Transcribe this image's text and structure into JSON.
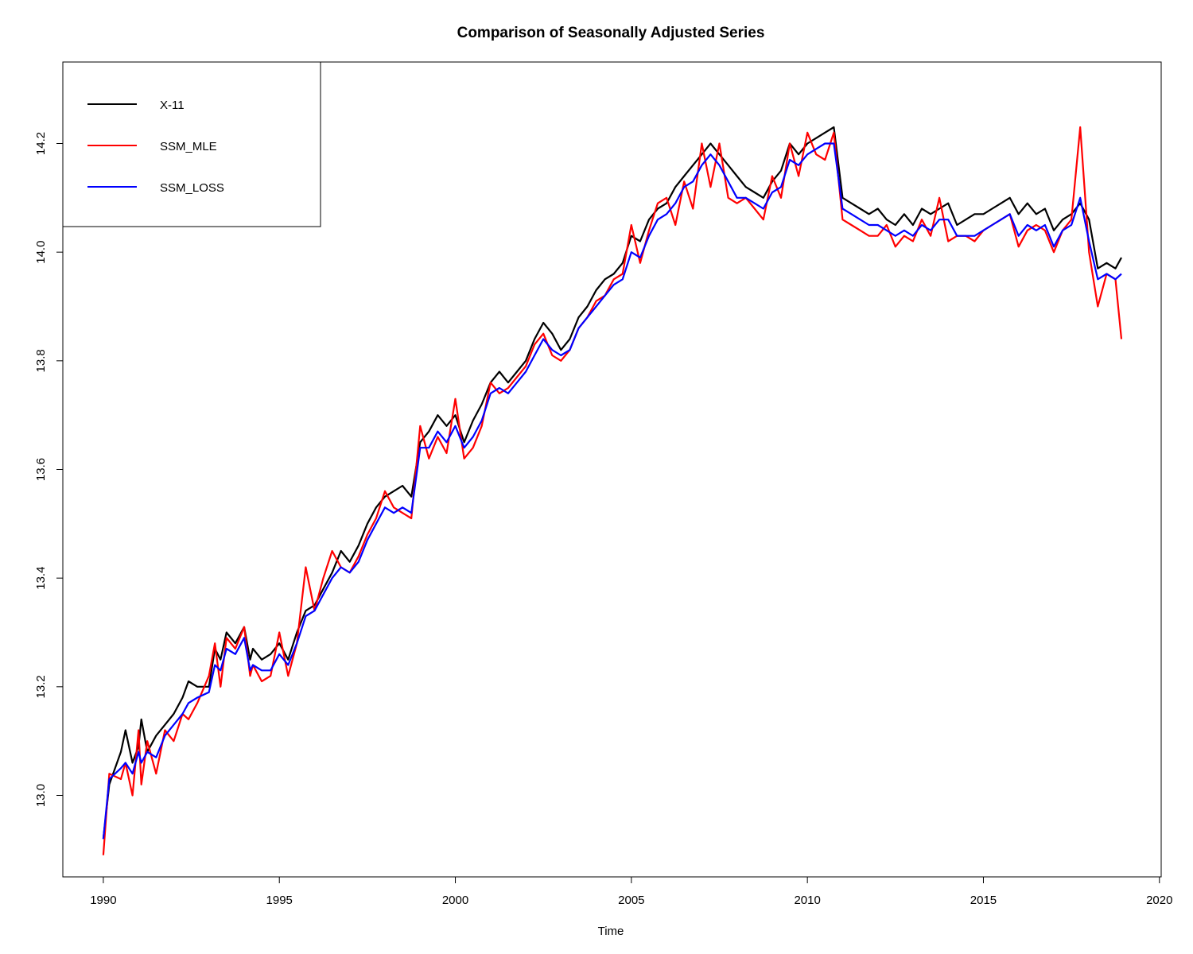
{
  "chart_data": {
    "type": "line",
    "title": "Comparison of Seasonally Adjusted Series",
    "xlabel": "Time",
    "ylabel": "",
    "xlim": [
      1988.85,
      2020.05
    ],
    "ylim": [
      12.85,
      14.35
    ],
    "x_ticks": [
      1990,
      1995,
      2000,
      2005,
      2010,
      2015,
      2020
    ],
    "x_tick_labels": [
      "1990",
      "1995",
      "2000",
      "2005",
      "2010",
      "2015",
      "2020"
    ],
    "y_ticks": [
      13.0,
      13.2,
      13.4,
      13.6,
      13.8,
      14.0,
      14.2
    ],
    "y_tick_labels": [
      "13.0",
      "13.2",
      "13.4",
      "13.6",
      "13.8",
      "14.0",
      "14.2"
    ],
    "grid": false,
    "legend_position": "top-left",
    "frequency": "monthly",
    "series": [
      {
        "name": "X-11",
        "color": "#000000",
        "x": [
          1990.0,
          1990.17,
          1990.5,
          1990.63,
          1990.83,
          1991.0,
          1991.08,
          1991.25,
          1991.5,
          1991.75,
          1992.0,
          1992.25,
          1992.42,
          1992.67,
          1993.0,
          1993.17,
          1993.33,
          1993.5,
          1993.75,
          1994.0,
          1994.17,
          1994.25,
          1994.5,
          1994.75,
          1995.0,
          1995.25,
          1995.5,
          1995.75,
          1996.0,
          1996.25,
          1996.5,
          1996.75,
          1997.0,
          1997.25,
          1997.5,
          1997.75,
          1998.0,
          1998.25,
          1998.5,
          1998.75,
          1999.0,
          1999.25,
          1999.5,
          1999.75,
          2000.0,
          2000.25,
          2000.5,
          2000.75,
          2001.0,
          2001.25,
          2001.5,
          2001.75,
          2002.0,
          2002.25,
          2002.5,
          2002.75,
          2003.0,
          2003.25,
          2003.5,
          2003.75,
          2004.0,
          2004.25,
          2004.5,
          2004.75,
          2005.0,
          2005.25,
          2005.5,
          2005.75,
          2006.0,
          2006.25,
          2006.5,
          2006.75,
          2007.0,
          2007.25,
          2007.5,
          2007.75,
          2008.0,
          2008.25,
          2008.5,
          2008.75,
          2009.0,
          2009.25,
          2009.5,
          2009.75,
          2010.0,
          2010.25,
          2010.5,
          2010.75,
          2011.0,
          2011.25,
          2011.5,
          2011.75,
          2012.0,
          2012.25,
          2012.5,
          2012.75,
          2013.0,
          2013.25,
          2013.5,
          2013.75,
          2014.0,
          2014.25,
          2014.5,
          2014.75,
          2015.0,
          2015.25,
          2015.5,
          2015.75,
          2016.0,
          2016.25,
          2016.5,
          2016.75,
          2017.0,
          2017.25,
          2017.5,
          2017.75,
          2018.0,
          2018.25,
          2018.5,
          2018.75,
          2018.92
        ],
        "y": [
          12.92,
          13.02,
          13.08,
          13.12,
          13.06,
          13.09,
          13.14,
          13.08,
          13.11,
          13.13,
          13.15,
          13.18,
          13.21,
          13.2,
          13.2,
          13.27,
          13.25,
          13.3,
          13.28,
          13.31,
          13.25,
          13.27,
          13.25,
          13.26,
          13.28,
          13.25,
          13.3,
          13.34,
          13.35,
          13.38,
          13.41,
          13.45,
          13.43,
          13.46,
          13.5,
          13.53,
          13.55,
          13.56,
          13.57,
          13.55,
          13.65,
          13.67,
          13.7,
          13.68,
          13.7,
          13.65,
          13.69,
          13.72,
          13.76,
          13.78,
          13.76,
          13.78,
          13.8,
          13.84,
          13.87,
          13.85,
          13.82,
          13.84,
          13.88,
          13.9,
          13.93,
          13.95,
          13.96,
          13.98,
          14.03,
          14.02,
          14.06,
          14.08,
          14.09,
          14.12,
          14.14,
          14.16,
          14.18,
          14.2,
          14.18,
          14.16,
          14.14,
          14.12,
          14.11,
          14.1,
          14.13,
          14.15,
          14.2,
          14.18,
          14.2,
          14.21,
          14.22,
          14.23,
          14.1,
          14.09,
          14.08,
          14.07,
          14.08,
          14.06,
          14.05,
          14.07,
          14.05,
          14.08,
          14.07,
          14.08,
          14.09,
          14.05,
          14.06,
          14.07,
          14.07,
          14.08,
          14.09,
          14.1,
          14.07,
          14.09,
          14.07,
          14.08,
          14.04,
          14.06,
          14.07,
          14.09,
          14.06,
          13.97,
          13.98,
          13.97,
          13.99
        ]
      },
      {
        "name": "SSM_MLE",
        "color": "#ff0000",
        "x": [
          1990.0,
          1990.17,
          1990.5,
          1990.63,
          1990.83,
          1991.0,
          1991.08,
          1991.25,
          1991.5,
          1991.75,
          1992.0,
          1992.25,
          1992.42,
          1992.67,
          1993.0,
          1993.17,
          1993.33,
          1993.5,
          1993.75,
          1994.0,
          1994.17,
          1994.25,
          1994.5,
          1994.75,
          1995.0,
          1995.25,
          1995.5,
          1995.75,
          1996.0,
          1996.25,
          1996.5,
          1996.75,
          1997.0,
          1997.25,
          1997.5,
          1997.75,
          1998.0,
          1998.25,
          1998.5,
          1998.75,
          1999.0,
          1999.25,
          1999.5,
          1999.75,
          2000.0,
          2000.25,
          2000.5,
          2000.75,
          2001.0,
          2001.25,
          2001.5,
          2001.75,
          2002.0,
          2002.25,
          2002.5,
          2002.75,
          2003.0,
          2003.25,
          2003.5,
          2003.75,
          2004.0,
          2004.25,
          2004.5,
          2004.75,
          2005.0,
          2005.25,
          2005.5,
          2005.75,
          2006.0,
          2006.25,
          2006.5,
          2006.75,
          2007.0,
          2007.25,
          2007.5,
          2007.75,
          2008.0,
          2008.25,
          2008.5,
          2008.75,
          2009.0,
          2009.25,
          2009.5,
          2009.75,
          2010.0,
          2010.25,
          2010.5,
          2010.75,
          2011.0,
          2011.25,
          2011.5,
          2011.75,
          2012.0,
          2012.25,
          2012.5,
          2012.75,
          2013.0,
          2013.25,
          2013.5,
          2013.75,
          2014.0,
          2014.25,
          2014.5,
          2014.75,
          2015.0,
          2015.25,
          2015.5,
          2015.75,
          2016.0,
          2016.25,
          2016.5,
          2016.75,
          2017.0,
          2017.25,
          2017.5,
          2017.75,
          2018.0,
          2018.25,
          2018.5,
          2018.75,
          2018.92
        ],
        "y": [
          12.89,
          13.04,
          13.03,
          13.06,
          13.0,
          13.12,
          13.02,
          13.1,
          13.04,
          13.12,
          13.1,
          13.15,
          13.14,
          13.17,
          13.22,
          13.28,
          13.2,
          13.29,
          13.27,
          13.31,
          13.22,
          13.24,
          13.21,
          13.22,
          13.3,
          13.22,
          13.28,
          13.42,
          13.34,
          13.4,
          13.45,
          13.42,
          13.41,
          13.44,
          13.48,
          13.51,
          13.56,
          13.53,
          13.52,
          13.51,
          13.68,
          13.62,
          13.66,
          13.63,
          13.73,
          13.62,
          13.64,
          13.68,
          13.76,
          13.74,
          13.75,
          13.77,
          13.79,
          13.83,
          13.85,
          13.81,
          13.8,
          13.82,
          13.86,
          13.88,
          13.91,
          13.92,
          13.95,
          13.96,
          14.05,
          13.98,
          14.04,
          14.09,
          14.1,
          14.05,
          14.13,
          14.08,
          14.2,
          14.12,
          14.2,
          14.1,
          14.09,
          14.1,
          14.08,
          14.06,
          14.14,
          14.1,
          14.2,
          14.14,
          14.22,
          14.18,
          14.17,
          14.22,
          14.06,
          14.05,
          14.04,
          14.03,
          14.03,
          14.05,
          14.01,
          14.03,
          14.02,
          14.06,
          14.03,
          14.1,
          14.02,
          14.03,
          14.03,
          14.02,
          14.04,
          14.05,
          14.06,
          14.07,
          14.01,
          14.04,
          14.05,
          14.04,
          14.0,
          14.04,
          14.06,
          14.23,
          14.0,
          13.9,
          13.96,
          13.95,
          13.84
        ]
      },
      {
        "name": "SSM_LOSS",
        "color": "#0000ff",
        "x": [
          1990.0,
          1990.17,
          1990.5,
          1990.63,
          1990.83,
          1991.0,
          1991.08,
          1991.25,
          1991.5,
          1991.75,
          1992.0,
          1992.25,
          1992.42,
          1992.67,
          1993.0,
          1993.17,
          1993.33,
          1993.5,
          1993.75,
          1994.0,
          1994.17,
          1994.25,
          1994.5,
          1994.75,
          1995.0,
          1995.25,
          1995.5,
          1995.75,
          1996.0,
          1996.25,
          1996.5,
          1996.75,
          1997.0,
          1997.25,
          1997.5,
          1997.75,
          1998.0,
          1998.25,
          1998.5,
          1998.75,
          1999.0,
          1999.25,
          1999.5,
          1999.75,
          2000.0,
          2000.25,
          2000.5,
          2000.75,
          2001.0,
          2001.25,
          2001.5,
          2001.75,
          2002.0,
          2002.25,
          2002.5,
          2002.75,
          2003.0,
          2003.25,
          2003.5,
          2003.75,
          2004.0,
          2004.25,
          2004.5,
          2004.75,
          2005.0,
          2005.25,
          2005.5,
          2005.75,
          2006.0,
          2006.25,
          2006.5,
          2006.75,
          2007.0,
          2007.25,
          2007.5,
          2007.75,
          2008.0,
          2008.25,
          2008.5,
          2008.75,
          2009.0,
          2009.25,
          2009.5,
          2009.75,
          2010.0,
          2010.25,
          2010.5,
          2010.75,
          2011.0,
          2011.25,
          2011.5,
          2011.75,
          2012.0,
          2012.25,
          2012.5,
          2012.75,
          2013.0,
          2013.25,
          2013.5,
          2013.75,
          2014.0,
          2014.25,
          2014.5,
          2014.75,
          2015.0,
          2015.25,
          2015.5,
          2015.75,
          2016.0,
          2016.25,
          2016.5,
          2016.75,
          2017.0,
          2017.25,
          2017.5,
          2017.75,
          2018.0,
          2018.25,
          2018.5,
          2018.75,
          2018.92
        ],
        "y": [
          12.92,
          13.03,
          13.05,
          13.06,
          13.04,
          13.08,
          13.06,
          13.08,
          13.07,
          13.11,
          13.13,
          13.15,
          13.17,
          13.18,
          13.19,
          13.24,
          13.23,
          13.27,
          13.26,
          13.29,
          13.23,
          13.24,
          13.23,
          13.23,
          13.26,
          13.24,
          13.28,
          13.33,
          13.34,
          13.37,
          13.4,
          13.42,
          13.41,
          13.43,
          13.47,
          13.5,
          13.53,
          13.52,
          13.53,
          13.52,
          13.64,
          13.64,
          13.67,
          13.65,
          13.68,
          13.64,
          13.66,
          13.69,
          13.74,
          13.75,
          13.74,
          13.76,
          13.78,
          13.81,
          13.84,
          13.82,
          13.81,
          13.82,
          13.86,
          13.88,
          13.9,
          13.92,
          13.94,
          13.95,
          14.0,
          13.99,
          14.03,
          14.06,
          14.07,
          14.09,
          14.12,
          14.13,
          14.16,
          14.18,
          14.16,
          14.13,
          14.1,
          14.1,
          14.09,
          14.08,
          14.11,
          14.12,
          14.17,
          14.16,
          14.18,
          14.19,
          14.2,
          14.2,
          14.08,
          14.07,
          14.06,
          14.05,
          14.05,
          14.04,
          14.03,
          14.04,
          14.03,
          14.05,
          14.04,
          14.06,
          14.06,
          14.03,
          14.03,
          14.03,
          14.04,
          14.05,
          14.06,
          14.07,
          14.03,
          14.05,
          14.04,
          14.05,
          14.01,
          14.04,
          14.05,
          14.1,
          14.02,
          13.95,
          13.96,
          13.95,
          13.96
        ]
      }
    ]
  }
}
